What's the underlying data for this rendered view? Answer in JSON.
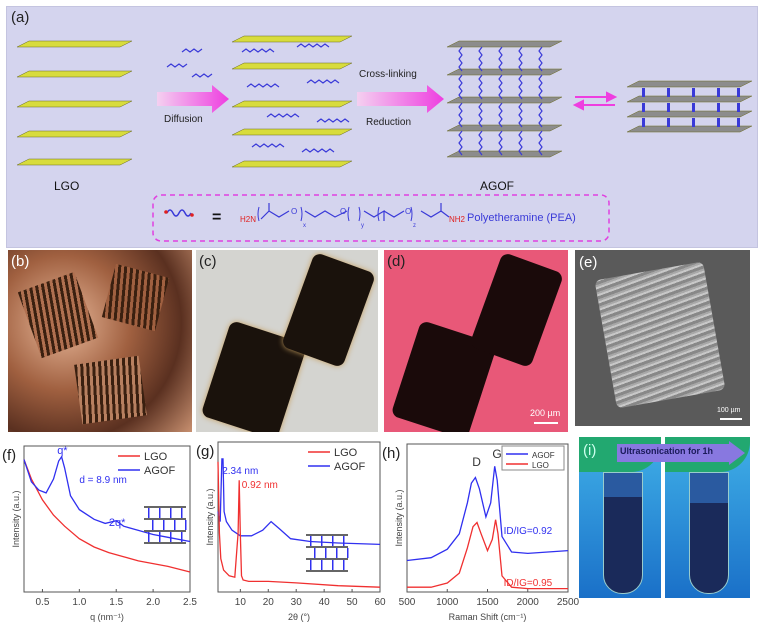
{
  "panels": {
    "a": {
      "label": "(a)",
      "lgo_label": "LGO",
      "agof_label": "AGOF",
      "diffusion_label": "Diffusion",
      "crosslinking_label": "Cross-linking",
      "reduction_label": "Reduction",
      "pea": {
        "equals": "=",
        "h2n": "H2N",
        "nh2": "NH2",
        "sub_x": "x",
        "sub_y": "y",
        "sub_z": "z",
        "o": "O",
        "name": "Polyetheramine (PEA)"
      },
      "colors": {
        "background": "#d4d4ee",
        "sheet_lgo": "#d8dc3c",
        "sheet_agof": "#8c8c8c",
        "arrow": "#ee3ee0",
        "chain": "#3a3ad8",
        "amine": "#e02020"
      }
    },
    "b": {
      "label": "(b)"
    },
    "c": {
      "label": "(c)"
    },
    "d": {
      "label": "(d)",
      "scale_bar": "200 µm"
    },
    "e": {
      "label": "(e)",
      "scale_bar": "100 µm"
    },
    "i": {
      "label": "(i)",
      "arrow_text": "Ultrasonication for 1h"
    }
  },
  "chart_data": [
    {
      "panel": "(f)",
      "type": "line",
      "xlabel": "q (nm⁻¹)",
      "ylabel": "Intensity (a.u.)",
      "xlim": [
        0.25,
        2.5
      ],
      "ylim": [
        0,
        100
      ],
      "y_scale": "log",
      "xticks": [
        "0.5",
        "1.0",
        "1.5",
        "2.0",
        "2.5"
      ],
      "xtick_values": [
        0.5,
        1.0,
        1.5,
        2.0,
        2.5
      ],
      "legend": "top-right",
      "annotations": {
        "peak1": "q*",
        "peak2": "2q*",
        "spacing": "d = 8.9 nm"
      },
      "series": [
        {
          "name": "LGO",
          "color": "#f03030",
          "x": [
            0.25,
            0.35,
            0.5,
            0.65,
            0.8,
            1.0,
            1.2,
            1.4,
            1.6,
            1.8,
            2.0,
            2.2,
            2.5
          ],
          "y": [
            94,
            80,
            65,
            54,
            46,
            37,
            31,
            27,
            24,
            21,
            19,
            17,
            13
          ]
        },
        {
          "name": "AGOF",
          "color": "#3030f0",
          "x": [
            0.25,
            0.35,
            0.45,
            0.55,
            0.65,
            0.72,
            0.76,
            0.8,
            0.88,
            1.0,
            1.2,
            1.35,
            1.5,
            1.6,
            1.8,
            2.0,
            2.2,
            2.5
          ],
          "y": [
            94,
            78,
            72,
            70,
            80,
            93,
            96,
            88,
            68,
            58,
            51,
            48,
            50,
            46,
            43,
            40,
            38,
            35
          ]
        }
      ]
    },
    {
      "panel": "(g)",
      "type": "line",
      "xlabel": "2θ (°)",
      "ylabel": "Intensity (a.u.)",
      "xlim": [
        2,
        60
      ],
      "ylim": [
        0,
        100
      ],
      "xticks": [
        "10",
        "20",
        "30",
        "40",
        "50",
        "60"
      ],
      "xtick_values": [
        10,
        20,
        30,
        40,
        50,
        60
      ],
      "legend": "top-right",
      "annotations": {
        "peak_agof": "2.34 nm",
        "peak_lgo": "0.92 nm"
      },
      "series": [
        {
          "name": "AGOF",
          "color": "#3030f0",
          "x": [
            2,
            2.8,
            3.4,
            3.8,
            4.2,
            5,
            7,
            10,
            14,
            18,
            21,
            24,
            28,
            35,
            45,
            60
          ],
          "y": [
            55,
            48,
            92,
            92,
            55,
            48,
            42,
            38,
            38,
            42,
            48,
            43,
            36,
            34,
            33,
            32
          ]
        },
        {
          "name": "LGO",
          "color": "#f03030",
          "x": [
            2,
            2.5,
            3,
            4,
            6,
            8,
            9.2,
            9.6,
            10,
            10.4,
            11,
            13,
            20,
            30,
            45,
            60
          ],
          "y": [
            90,
            40,
            22,
            14,
            10,
            9,
            40,
            77,
            40,
            10,
            7,
            6,
            6,
            5,
            3,
            2
          ]
        }
      ]
    },
    {
      "panel": "(h)",
      "type": "line",
      "xlabel": "Raman Shift (cm⁻¹)",
      "ylabel": "Intensity (a.u.)",
      "xlim": [
        500,
        2500
      ],
      "ylim": [
        0,
        100
      ],
      "xticks": [
        "500",
        "1000",
        "1500",
        "2000",
        "2500"
      ],
      "xtick_values": [
        500,
        1000,
        1500,
        2000,
        2500
      ],
      "legend": "top-right",
      "annotations": {
        "peak_d": "D",
        "peak_g": "G",
        "ratio_agof": "ID/IG=0.92",
        "ratio_lgo": "ID/IG=0.95"
      },
      "series": [
        {
          "name": "AGOF",
          "color": "#3030f0",
          "x": [
            500,
            800,
            1000,
            1150,
            1250,
            1300,
            1350,
            1400,
            1480,
            1540,
            1590,
            1620,
            1680,
            1800,
            2000,
            2500
          ],
          "y": [
            21,
            23,
            29,
            40,
            62,
            76,
            80,
            72,
            52,
            62,
            88,
            78,
            38,
            27,
            26,
            28
          ]
        },
        {
          "name": "LGO",
          "color": "#f03030",
          "x": [
            500,
            800,
            1000,
            1150,
            1250,
            1320,
            1370,
            1420,
            1500,
            1560,
            1600,
            1630,
            1680,
            1800,
            2000,
            2500
          ],
          "y": [
            2,
            2,
            5,
            12,
            30,
            45,
            48,
            40,
            28,
            36,
            50,
            40,
            10,
            2,
            1,
            1
          ]
        }
      ]
    }
  ]
}
